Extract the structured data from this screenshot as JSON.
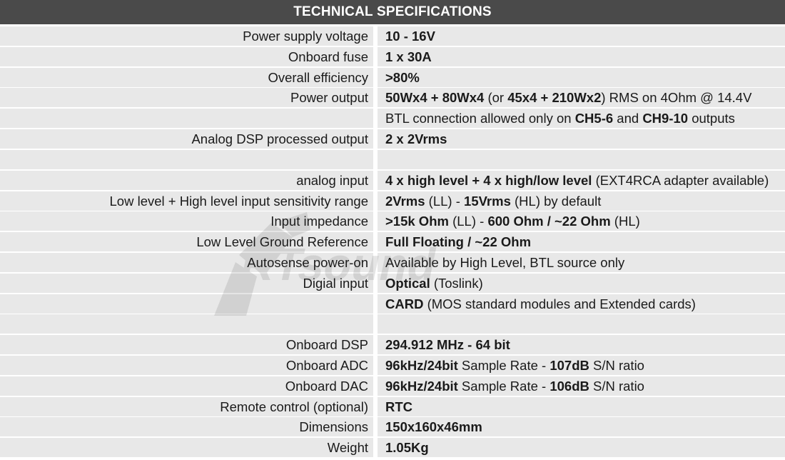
{
  "title": "TECHNICAL SPECIFICATIONS",
  "rows": [
    {
      "label": "Power supply voltage",
      "value": [
        {
          "t": "10 - 16V",
          "b": true
        }
      ]
    },
    {
      "label": "Onboard fuse",
      "value": [
        {
          "t": "1 x 30A",
          "b": true
        }
      ]
    },
    {
      "label": "Overall efficiency",
      "value": [
        {
          "t": ">80%",
          "b": true
        }
      ]
    },
    {
      "label": "Power output",
      "value": [
        {
          "t": "50Wx4 + 80Wx4",
          "b": true
        },
        {
          "t": " (or ",
          "b": false
        },
        {
          "t": "45x4 + 210Wx2",
          "b": true
        },
        {
          "t": ") RMS on 4Ohm @ 14.4V",
          "b": false
        }
      ]
    },
    {
      "label": "",
      "value": [
        {
          "t": "BTL connection allowed only on ",
          "b": false
        },
        {
          "t": "CH5-6",
          "b": true
        },
        {
          "t": " and ",
          "b": false
        },
        {
          "t": "CH9-10",
          "b": true
        },
        {
          "t": " outputs",
          "b": false
        }
      ]
    },
    {
      "label": "Analog DSP processed output",
      "value": [
        {
          "t": "2 x 2Vrms",
          "b": true
        }
      ]
    },
    {
      "label": "",
      "value": []
    },
    {
      "label": "analog input",
      "value": [
        {
          "t": "4 x high level + 4 x high/low level",
          "b": true
        },
        {
          "t": " (EXT4RCA adapter available)",
          "b": false
        }
      ]
    },
    {
      "label": "Low level + High level input sensitivity range",
      "value": [
        {
          "t": "2Vrms",
          "b": true
        },
        {
          "t": " (LL) - ",
          "b": false
        },
        {
          "t": "15Vrms",
          "b": true
        },
        {
          "t": " (HL) by default",
          "b": false
        }
      ]
    },
    {
      "label": "Input impedance",
      "value": [
        {
          "t": ">15k Ohm",
          "b": true
        },
        {
          "t": " (LL) - ",
          "b": false
        },
        {
          "t": "600 Ohm / ~22 Ohm",
          "b": true
        },
        {
          "t": " (HL)",
          "b": false
        }
      ]
    },
    {
      "label": "Low Level Ground Reference",
      "value": [
        {
          "t": "Full Floating / ~22 Ohm",
          "b": true
        }
      ]
    },
    {
      "label": "Autosense power-on",
      "value": [
        {
          "t": "Available by High Level, BTL source only",
          "b": false
        }
      ]
    },
    {
      "label": "Digial input",
      "value": [
        {
          "t": "Optical",
          "b": true
        },
        {
          "t": " (Toslink)",
          "b": false
        }
      ]
    },
    {
      "label": "",
      "value": [
        {
          "t": "CARD",
          "b": true
        },
        {
          "t": " (MOS standard modules and Extended cards)",
          "b": false
        }
      ]
    },
    {
      "label": "",
      "value": []
    },
    {
      "label": "Onboard DSP",
      "value": [
        {
          "t": "294.912 MHz  - 64 bit",
          "b": true
        }
      ]
    },
    {
      "label": "Onboard ADC",
      "value": [
        {
          "t": "96kHz/24bit",
          "b": true
        },
        {
          "t": " Sample Rate - ",
          "b": false
        },
        {
          "t": "107dB",
          "b": true
        },
        {
          "t": " S/N ratio",
          "b": false
        }
      ]
    },
    {
      "label": "Onboard DAC",
      "value": [
        {
          "t": "96kHz/24bit",
          "b": true
        },
        {
          "t": " Sample Rate - ",
          "b": false
        },
        {
          "t": "106dB",
          "b": true
        },
        {
          "t": " S/N ratio",
          "b": false
        }
      ]
    },
    {
      "label": "Remote control (optional)",
      "value": [
        {
          "t": "RTC",
          "b": true
        }
      ]
    },
    {
      "label": "Dimensions",
      "value": [
        {
          "t": "150x160x46mm",
          "b": true
        }
      ]
    },
    {
      "label": "Weight",
      "value": [
        {
          "t": "1.05Kg",
          "b": true
        }
      ]
    }
  ],
  "watermark": "RTsound"
}
